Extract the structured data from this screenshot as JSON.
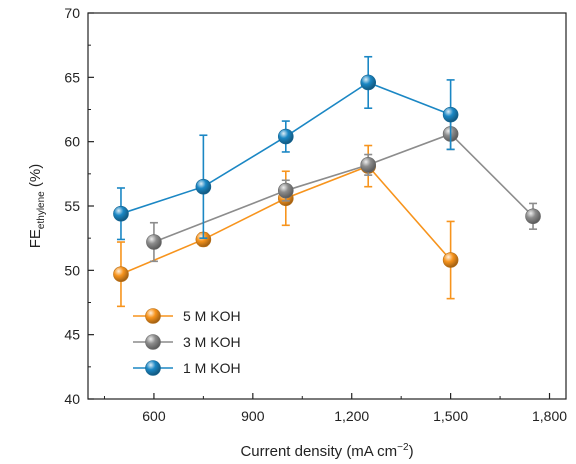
{
  "chart_data": {
    "type": "line",
    "title": "",
    "xlabel": {
      "main": "Current density (mA cm",
      "sup": "−2",
      "close": ")"
    },
    "ylabel": {
      "main": "FE",
      "sub": "ethylene",
      "suffix": " (%)"
    },
    "xlim": [
      400,
      1850
    ],
    "ylim": [
      40,
      70
    ],
    "x_ticks": [
      600,
      900,
      1200,
      1500,
      1800
    ],
    "x_tick_labels": [
      "600",
      "900",
      "1,200",
      "1,500",
      "1,800"
    ],
    "y_ticks": [
      40,
      45,
      50,
      55,
      60,
      65,
      70
    ],
    "y_tick_labels": [
      "40",
      "45",
      "50",
      "55",
      "60",
      "65",
      "70"
    ],
    "grid": false,
    "legend_position": "bottom-left",
    "series": [
      {
        "name": "5 M KOH",
        "color": "#f7941d",
        "x": [
          500,
          750,
          1000,
          1250,
          1500
        ],
        "y": [
          49.7,
          52.4,
          55.6,
          58.1,
          50.8
        ],
        "err": [
          2.5,
          0.5,
          2.1,
          1.6,
          3.0
        ]
      },
      {
        "name": "3 M KOH",
        "color": "#8c8c8c",
        "x": [
          600,
          1000,
          1250,
          1500,
          1750
        ],
        "y": [
          52.2,
          56.2,
          58.2,
          60.6,
          54.2
        ],
        "err": [
          1.5,
          0.8,
          0.8,
          1.2,
          1.0
        ]
      },
      {
        "name": "1 M KOH",
        "color": "#1b87c4",
        "x": [
          500,
          750,
          1000,
          1250,
          1500
        ],
        "y": [
          54.4,
          56.5,
          60.4,
          64.6,
          62.1
        ],
        "err": [
          2.0,
          4.0,
          1.2,
          2.0,
          2.7
        ]
      }
    ]
  }
}
